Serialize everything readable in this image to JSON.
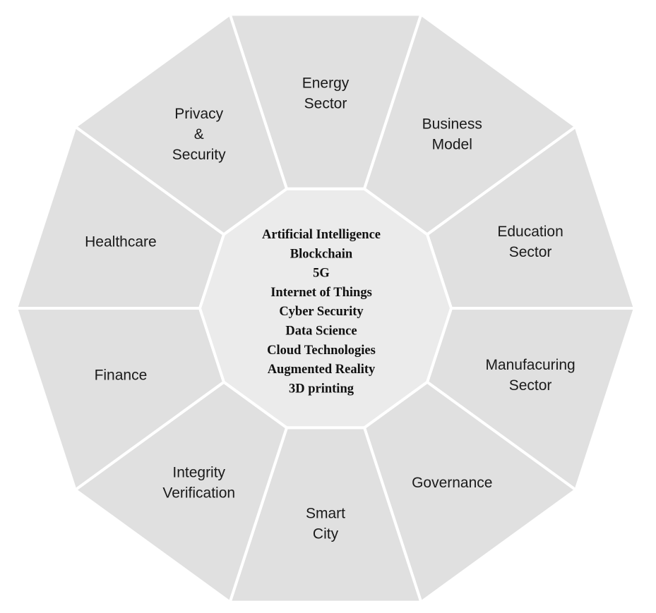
{
  "segments": [
    {
      "id": "energy-sector",
      "lines": [
        "Energy",
        "Sector"
      ]
    },
    {
      "id": "business-model",
      "lines": [
        "Business",
        "Model"
      ]
    },
    {
      "id": "education-sector",
      "lines": [
        "Education",
        "Sector"
      ]
    },
    {
      "id": "manufacuring-sector",
      "lines": [
        "Manufacuring",
        "Sector"
      ]
    },
    {
      "id": "governance",
      "lines": [
        "Governance"
      ]
    },
    {
      "id": "smart-city",
      "lines": [
        "Smart",
        "City"
      ]
    },
    {
      "id": "integrity-verification",
      "lines": [
        "Integrity",
        "Verification"
      ]
    },
    {
      "id": "finance",
      "lines": [
        "Finance"
      ]
    },
    {
      "id": "healthcare",
      "lines": [
        "Healthcare"
      ]
    },
    {
      "id": "privacy-security",
      "lines": [
        "Privacy",
        "&",
        "Security"
      ]
    }
  ],
  "center": {
    "items": [
      "Artificial Intelligence",
      "Blockchain",
      "5G",
      "Internet of Things",
      "Cyber Security",
      "Data Science",
      "Cloud Technologies",
      "Augmented Reality",
      "3D printing"
    ]
  },
  "colors": {
    "segment_fill": "#e0e0e0",
    "center_fill": "#ebebeb",
    "divider": "#ffffff"
  }
}
